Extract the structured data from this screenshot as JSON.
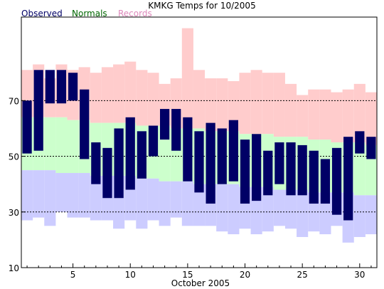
{
  "chart_data": {
    "type": "bar",
    "title": "KMKG Temps for 10/2005",
    "xlabel": "October 2005",
    "ylabel": "",
    "ylim": [
      10,
      100
    ],
    "xlim": [
      0.5,
      31.5
    ],
    "x_ticks": [
      5,
      10,
      15,
      20,
      25,
      30
    ],
    "y_ticks": [
      10,
      30,
      50,
      70
    ],
    "gridlines_y": [
      30,
      50,
      70
    ],
    "legend": {
      "placement": "top-left",
      "entries": [
        {
          "label": "Observed",
          "color": "#000066"
        },
        {
          "label": "Normals",
          "color": "#006600"
        },
        {
          "label": "Records",
          "color": "#dd88bb"
        }
      ]
    },
    "colors": {
      "observed": "#000066",
      "normal_band": "#ccffcc",
      "record_high_band": "#ffcccc",
      "record_low_band": "#ccccff",
      "grid": "#000000"
    },
    "days": [
      1,
      2,
      3,
      4,
      5,
      6,
      7,
      8,
      9,
      10,
      11,
      12,
      13,
      14,
      15,
      16,
      17,
      18,
      19,
      20,
      21,
      22,
      23,
      24,
      25,
      26,
      27,
      28,
      29,
      30,
      31
    ],
    "series": [
      {
        "name": "Records",
        "kind": "high",
        "values": [
          81,
          83,
          78,
          83,
          81,
          82,
          80,
          82,
          83,
          84,
          81,
          80,
          76,
          78,
          96,
          81,
          78,
          78,
          77,
          80,
          81,
          80,
          80,
          76,
          72,
          74,
          74,
          73,
          74,
          76,
          73
        ]
      },
      {
        "name": "Normals",
        "kind": "high",
        "values": [
          64,
          64,
          64,
          64,
          63,
          63,
          62,
          62,
          62,
          62,
          61,
          61,
          61,
          60,
          60,
          60,
          59,
          59,
          59,
          58,
          58,
          58,
          57,
          57,
          57,
          56,
          56,
          55,
          55,
          55,
          54
        ]
      },
      {
        "name": "Normals",
        "kind": "low",
        "values": [
          45,
          45,
          45,
          44,
          44,
          44,
          43,
          43,
          43,
          43,
          42,
          42,
          41,
          41,
          41,
          40,
          40,
          40,
          40,
          39,
          39,
          39,
          38,
          38,
          38,
          37,
          37,
          37,
          37,
          36,
          36
        ]
      },
      {
        "name": "Records",
        "kind": "low",
        "values": [
          27,
          28,
          25,
          30,
          28,
          28,
          27,
          27,
          24,
          27,
          24,
          27,
          25,
          28,
          25,
          25,
          25,
          23,
          22,
          24,
          22,
          23,
          25,
          24,
          21,
          23,
          22,
          25,
          19,
          21,
          22
        ]
      },
      {
        "name": "Observed",
        "kind": "high",
        "values": [
          70,
          81,
          81,
          81,
          80,
          74,
          55,
          53,
          60,
          64,
          59,
          61,
          67,
          67,
          64,
          59,
          62,
          60,
          63,
          56,
          58,
          52,
          55,
          55,
          54,
          52,
          49,
          53,
          57,
          59,
          57
        ]
      },
      {
        "name": "Observed",
        "kind": "low",
        "values": [
          51,
          52,
          69,
          69,
          70,
          49,
          40,
          35,
          35,
          38,
          42,
          50,
          56,
          52,
          41,
          37,
          33,
          40,
          41,
          33,
          34,
          36,
          40,
          36,
          36,
          33,
          33,
          29,
          27,
          51,
          49
        ]
      }
    ]
  }
}
